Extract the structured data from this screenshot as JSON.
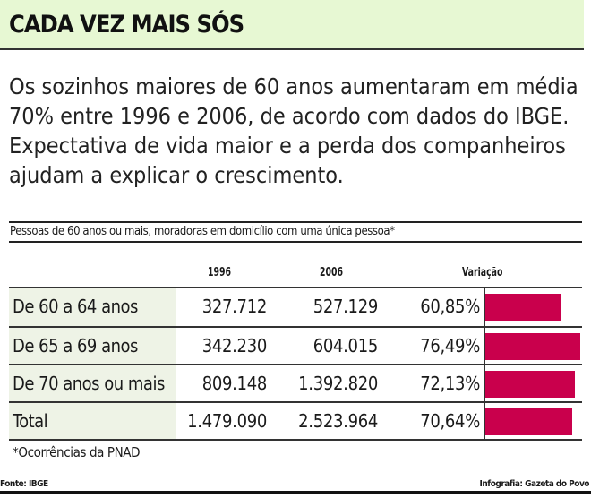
{
  "header": {
    "title": "CADA VEZ MAIS SÓS"
  },
  "intro": "Os sozinhos maiores de 60 anos aumentaram em média 70% entre 1996 e 2006, de acordo com dados do IBGE. Expectativa de vida maior e a perda dos companheiros ajudam a explicar o crescimento.",
  "chart_data": {
    "type": "table",
    "title": "Pessoas de 60 anos ou mais, moradoras em domicílio com uma única pessoa*",
    "columns": [
      "1996",
      "2006",
      "Variação"
    ],
    "rows": [
      {
        "label": "De 60 a 64 anos",
        "y1996": "327.712",
        "y2006": "527.129",
        "variacao": "60,85%",
        "pct": 60.85
      },
      {
        "label": "De 65 a 69 anos",
        "y1996": "342.230",
        "y2006": "604.015",
        "variacao": "76,49%",
        "pct": 76.49
      },
      {
        "label": "De 70 anos ou mais",
        "y1996": "809.148",
        "y2006": "1.392.820",
        "variacao": "72,13%",
        "pct": 72.13
      },
      {
        "label": "Total",
        "y1996": "1.479.090",
        "y2006": "2.523.964",
        "variacao": "70,64%",
        "pct": 70.64
      }
    ],
    "bar_color": "#c9004c"
  },
  "footnote": "*Ocorrências da PNAD",
  "source": "Fonte: IBGE",
  "credit": "Infografia: Gazeta do Povo"
}
